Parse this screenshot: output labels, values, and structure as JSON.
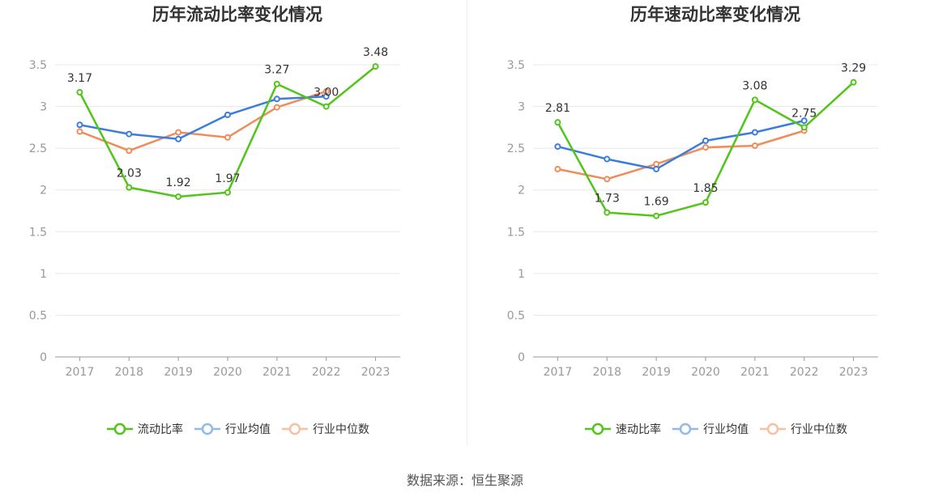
{
  "source": "数据来源：恒生聚源",
  "charts": [
    {
      "type": "line",
      "title": "历年流动比率变化情况",
      "categories": [
        "2017",
        "2018",
        "2019",
        "2020",
        "2021",
        "2022",
        "2023"
      ],
      "ylim": [
        0,
        3.5
      ],
      "yticks": [
        "0",
        "0.5",
        "1",
        "1.5",
        "2",
        "2.5",
        "3",
        "3.5"
      ],
      "grid": true,
      "legend_position": "bottom",
      "series": [
        {
          "name": "流动比率",
          "color": "#52c41a",
          "values": [
            3.17,
            2.03,
            1.92,
            1.97,
            3.27,
            3.0,
            3.48
          ],
          "labels": [
            "3.17",
            "2.03",
            "1.92",
            "1.97",
            "3.27",
            "3.00",
            "3.48"
          ]
        },
        {
          "name": "行业均值",
          "color": "#3b7ddd",
          "values": [
            2.78,
            2.67,
            2.61,
            2.9,
            3.09,
            3.12,
            null
          ]
        },
        {
          "name": "行业中位数",
          "color": "#f08c5a",
          "values": [
            2.7,
            2.47,
            2.69,
            2.63,
            2.99,
            3.18,
            null
          ]
        }
      ]
    },
    {
      "type": "line",
      "title": "历年速动比率变化情况",
      "categories": [
        "2017",
        "2018",
        "2019",
        "2020",
        "2021",
        "2022",
        "2023"
      ],
      "ylim": [
        0,
        3.5
      ],
      "yticks": [
        "0",
        "0.5",
        "1",
        "1.5",
        "2",
        "2.5",
        "3",
        "3.5"
      ],
      "grid": true,
      "legend_position": "bottom",
      "series": [
        {
          "name": "速动比率",
          "color": "#52c41a",
          "values": [
            2.81,
            1.73,
            1.69,
            1.85,
            3.08,
            2.75,
            3.29
          ],
          "labels": [
            "2.81",
            "1.73",
            "1.69",
            "1.85",
            "3.08",
            "2.75",
            "3.29"
          ]
        },
        {
          "name": "行业均值",
          "color": "#3b7ddd",
          "values": [
            2.52,
            2.37,
            2.25,
            2.59,
            2.69,
            2.83,
            null
          ]
        },
        {
          "name": "行业中位数",
          "color": "#f08c5a",
          "values": [
            2.25,
            2.13,
            2.31,
            2.51,
            2.53,
            2.71,
            null
          ]
        }
      ]
    }
  ]
}
